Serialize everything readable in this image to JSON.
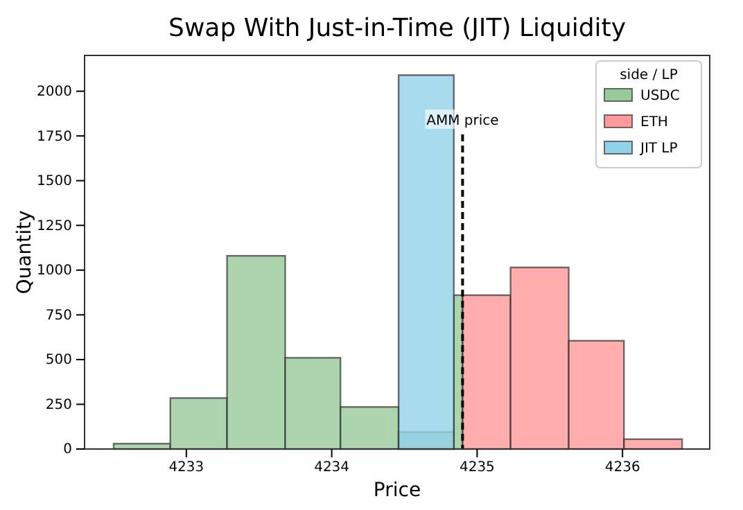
{
  "chart_data": {
    "type": "histogram",
    "title": "Swap With Just-in-Time (JIT) Liquidity",
    "xlabel": "Price",
    "ylabel": "Quantity",
    "legend_title": "side / LP",
    "legend": "top right",
    "bins": [
      4232.5,
      4232.89,
      4233.28,
      4233.68,
      4234.06,
      4234.46,
      4234.84,
      4234.9,
      4235.23,
      4235.63,
      4236.01,
      4236.41
    ],
    "series": [
      {
        "name": "USDC",
        "color": "#98cb98",
        "values": [
          30,
          285,
          1080,
          510,
          235,
          95,
          860,
          null,
          null,
          null,
          null
        ]
      },
      {
        "name": "ETH",
        "color": "#ff9999",
        "values": [
          null,
          null,
          null,
          null,
          null,
          null,
          null,
          860,
          1015,
          605,
          55
        ]
      },
      {
        "name": "JIT LP",
        "color": "#92d1ea",
        "values": [
          null,
          null,
          null,
          null,
          null,
          2090,
          null,
          null,
          null,
          null,
          null
        ]
      }
    ],
    "ref_lines": [
      {
        "axis": "x",
        "value": 4234.9,
        "label": "AMM price",
        "color": "#000000",
        "line_style": "dashed"
      }
    ],
    "xlim": [
      4232.3,
      4236.6
    ],
    "ylim": [
      0,
      2200
    ],
    "xticks": [
      4233,
      4234,
      4235,
      4236
    ],
    "yticks": [
      0,
      250,
      500,
      750,
      1000,
      1250,
      1500,
      1750,
      2000
    ],
    "grid": false
  }
}
